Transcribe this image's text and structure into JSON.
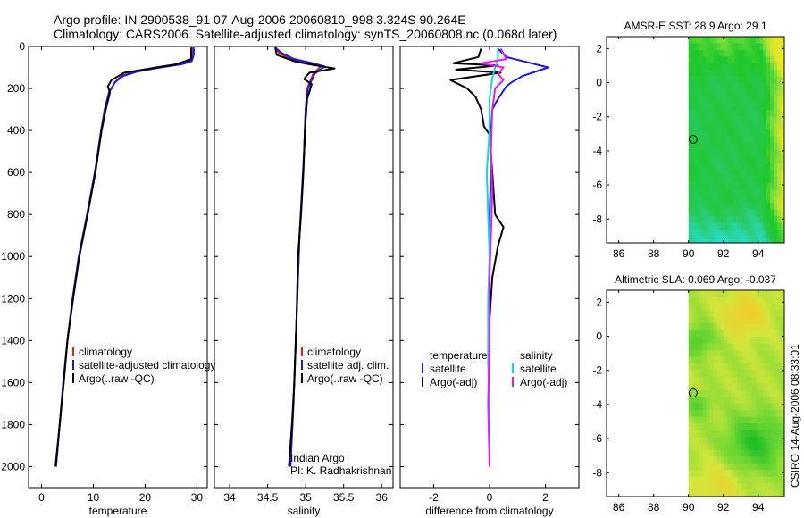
{
  "header": {
    "title_line1": "Argo profile: IN 2900538_91 07-Aug-2006 20060810_998 3.324S 90.264E",
    "title_line2": "Climatology: CARS2006. Satellite-adjusted climatology: synTS_20060808.nc (0.068d later)"
  },
  "side_stamp": "CSIRO 14-Aug-2006 08:33:01",
  "colors": {
    "climatology": "#e8191a",
    "satellite": "#1a1ae6",
    "argo": "#000000",
    "diff_temp_sat": "#1a1ae6",
    "diff_temp_argo": "#000000",
    "diff_sal_sat": "#10d6e0",
    "diff_sal_argo": "#e81ee8"
  },
  "chart_data": [
    {
      "type": "line",
      "id": "temperature",
      "xlabel": "temperature",
      "ylabel": "",
      "xlim": [
        -2.5,
        32
      ],
      "ylim": [
        2100,
        0
      ],
      "x_ticks": [
        0,
        10,
        20,
        30
      ],
      "x_tick_labels": [
        "0",
        "10",
        "20",
        "30"
      ],
      "y_ticks": [
        0,
        200,
        400,
        600,
        800,
        1000,
        1200,
        1400,
        1600,
        1800,
        2000
      ],
      "y_tick_labels": [
        "0",
        "200",
        "400",
        "600",
        "800",
        "1000",
        "1200",
        "1400",
        "1600",
        "1800",
        "2000"
      ],
      "legend": [
        "climatology",
        "satellite-adjusted climatology",
        "Argo(..raw -QC)"
      ],
      "series": [
        {
          "name": "climatology",
          "color_key": "climatology",
          "points": [
            [
              29.2,
              5
            ],
            [
              29.1,
              40
            ],
            [
              28.8,
              70
            ],
            [
              26,
              85
            ],
            [
              22,
              100
            ],
            [
              18,
              120
            ],
            [
              15.5,
              140
            ],
            [
              14.2,
              170
            ],
            [
              13,
              220
            ],
            [
              12.2,
              300
            ],
            [
              11.5,
              400
            ],
            [
              10.3,
              600
            ],
            [
              8.8,
              800
            ],
            [
              7.2,
              1000
            ],
            [
              6,
              1200
            ],
            [
              5,
              1400
            ],
            [
              4.2,
              1600
            ],
            [
              3.5,
              1800
            ],
            [
              2.8,
              2000
            ]
          ]
        },
        {
          "name": "satellite-adjusted climatology",
          "color_key": "satellite",
          "points": [
            [
              29.4,
              5
            ],
            [
              29.4,
              40
            ],
            [
              29,
              70
            ],
            [
              27,
              85
            ],
            [
              23,
              100
            ],
            [
              18.5,
              120
            ],
            [
              15.8,
              140
            ],
            [
              14.2,
              170
            ],
            [
              13,
              220
            ],
            [
              12.2,
              300
            ],
            [
              11.5,
              400
            ],
            [
              10.3,
              600
            ],
            [
              8.8,
              800
            ],
            [
              7.2,
              1000
            ],
            [
              6,
              1200
            ],
            [
              5,
              1400
            ],
            [
              4.2,
              1600
            ],
            [
              3.5,
              1800
            ],
            [
              2.8,
              2000
            ]
          ]
        },
        {
          "name": "Argo(..raw -QC)",
          "color_key": "argo",
          "points": [
            [
              28.9,
              5
            ],
            [
              28.9,
              60
            ],
            [
              26,
              85
            ],
            [
              21,
              105
            ],
            [
              16,
              125
            ],
            [
              13.5,
              160
            ],
            [
              12.8,
              190
            ],
            [
              13.2,
              220
            ],
            [
              12.4,
              300
            ],
            [
              11.6,
              400
            ],
            [
              10.4,
              600
            ],
            [
              8.9,
              800
            ],
            [
              7.3,
              1000
            ],
            [
              6.1,
              1200
            ],
            [
              5,
              1400
            ],
            [
              4.3,
              1600
            ],
            [
              3.5,
              1800
            ],
            [
              2.7,
              2000
            ]
          ]
        }
      ]
    },
    {
      "type": "line",
      "id": "salinity",
      "xlabel": "salinity",
      "xlim": [
        33.8,
        36.15
      ],
      "ylim": [
        2100,
        0
      ],
      "x_ticks": [
        34,
        34.5,
        35,
        35.5,
        36
      ],
      "x_tick_labels": [
        "34",
        "34.5",
        "35",
        "35.5",
        "36"
      ],
      "legend": [
        "climatology",
        "satellite adj. clim.",
        "Argo(..raw -QC)"
      ],
      "annotation": [
        "Indian Argo",
        "PI: K. Radhakrishnan"
      ],
      "series": [
        {
          "name": "climatology",
          "color_key": "climatology",
          "points": [
            [
              34.6,
              5
            ],
            [
              34.65,
              30
            ],
            [
              34.8,
              60
            ],
            [
              35.05,
              80
            ],
            [
              35.2,
              95
            ],
            [
              35.1,
              130
            ],
            [
              35.02,
              200
            ],
            [
              35.0,
              300
            ],
            [
              34.98,
              500
            ],
            [
              34.95,
              700
            ],
            [
              34.92,
              900
            ],
            [
              34.9,
              1100
            ],
            [
              34.87,
              1400
            ],
            [
              34.84,
              1700
            ],
            [
              34.8,
              2000
            ]
          ]
        },
        {
          "name": "satellite adj. clim.",
          "color_key": "satellite",
          "points": [
            [
              34.6,
              5
            ],
            [
              34.68,
              30
            ],
            [
              34.85,
              60
            ],
            [
              35.1,
              80
            ],
            [
              35.25,
              95
            ],
            [
              35.12,
              130
            ],
            [
              35.03,
              200
            ],
            [
              35.0,
              300
            ],
            [
              34.98,
              500
            ],
            [
              34.95,
              700
            ],
            [
              34.92,
              900
            ],
            [
              34.9,
              1100
            ],
            [
              34.87,
              1400
            ],
            [
              34.84,
              1700
            ],
            [
              34.8,
              2000
            ]
          ]
        },
        {
          "name": "Argo(..raw -QC)",
          "color_key": "argo",
          "points": [
            [
              34.6,
              5
            ],
            [
              34.62,
              40
            ],
            [
              34.85,
              70
            ],
            [
              35.05,
              85
            ],
            [
              35.38,
              105
            ],
            [
              35.05,
              125
            ],
            [
              34.98,
              155
            ],
            [
              35.08,
              180
            ],
            [
              35.02,
              250
            ],
            [
              34.99,
              400
            ],
            [
              34.97,
              600
            ],
            [
              34.94,
              800
            ],
            [
              34.9,
              1000
            ],
            [
              34.88,
              1300
            ],
            [
              34.85,
              1600
            ],
            [
              34.82,
              1800
            ],
            [
              34.78,
              2000
            ]
          ]
        }
      ]
    },
    {
      "type": "line",
      "id": "difference",
      "xlabel": "difference from climatology",
      "xlim": [
        -3.2,
        3.2
      ],
      "ylim": [
        2100,
        0
      ],
      "x_ticks": [
        -2,
        0,
        2
      ],
      "x_tick_labels": [
        "-2",
        "0",
        "2"
      ],
      "legend_temperature": {
        "title": "temperature",
        "items": [
          "satellite",
          "Argo(-adj)"
        ]
      },
      "legend_salinity": {
        "title": "salinity",
        "items": [
          "satellite",
          "Argo(-adj)"
        ]
      },
      "series": [
        {
          "name": "temperature satellite",
          "color_key": "diff_temp_sat",
          "points": [
            [
              0.3,
              10
            ],
            [
              0.6,
              50
            ],
            [
              2.1,
              100
            ],
            [
              1.2,
              140
            ],
            [
              0.8,
              170
            ],
            [
              0.6,
              190
            ],
            [
              0.3,
              250
            ],
            [
              0.1,
              300
            ],
            [
              0.05,
              400
            ],
            [
              0.05,
              600
            ],
            [
              0,
              800
            ],
            [
              0,
              1000
            ],
            [
              0,
              1300
            ],
            [
              0,
              1600
            ],
            [
              0,
              2000
            ]
          ]
        },
        {
          "name": "temperature Argo(-adj)",
          "color_key": "diff_temp_argo",
          "points": [
            [
              -0.3,
              10
            ],
            [
              -0.4,
              50
            ],
            [
              -1.3,
              80
            ],
            [
              0.3,
              90
            ],
            [
              -1.2,
              110
            ],
            [
              0.4,
              125
            ],
            [
              -1.4,
              160
            ],
            [
              -0.8,
              200
            ],
            [
              -0.5,
              240
            ],
            [
              -0.3,
              300
            ],
            [
              -0.2,
              380
            ],
            [
              0,
              420
            ],
            [
              0.1,
              600
            ],
            [
              0.2,
              800
            ],
            [
              0.5,
              860
            ],
            [
              0.3,
              950
            ],
            [
              0.1,
              1100
            ],
            [
              0,
              1300
            ],
            [
              0,
              1600
            ],
            [
              0,
              2000
            ]
          ]
        },
        {
          "name": "salinity satellite",
          "color_key": "diff_sal_sat",
          "points": [
            [
              0.3,
              10
            ],
            [
              0.3,
              60
            ],
            [
              0.2,
              100
            ],
            [
              0.1,
              150
            ],
            [
              0,
              250
            ],
            [
              0,
              400
            ],
            [
              -0.1,
              600
            ],
            [
              -0.05,
              800
            ],
            [
              0,
              1000
            ],
            [
              -0.05,
              1200
            ],
            [
              -0.05,
              1500
            ],
            [
              0,
              1800
            ],
            [
              0,
              2000
            ]
          ]
        },
        {
          "name": "salinity Argo(-adj)",
          "color_key": "diff_sal_argo",
          "points": [
            [
              0.4,
              10
            ],
            [
              0.6,
              60
            ],
            [
              -0.3,
              80
            ],
            [
              0.5,
              100
            ],
            [
              0.3,
              130
            ],
            [
              0.5,
              160
            ],
            [
              0.2,
              200
            ],
            [
              0.1,
              300
            ],
            [
              0.05,
              500
            ],
            [
              0.1,
              700
            ],
            [
              0.05,
              900
            ],
            [
              0,
              1100
            ],
            [
              0,
              1400
            ],
            [
              -0.05,
              1700
            ],
            [
              0,
              2000
            ]
          ]
        }
      ]
    },
    {
      "type": "heatmap",
      "id": "sst_map",
      "title": "AMSR-E SST: 28.9 Argo: 29.1",
      "xlim": [
        85.3,
        95.5
      ],
      "ylim": [
        -9.4,
        2.7
      ],
      "x_ticks": [
        86,
        88,
        90,
        92,
        94
      ],
      "x_tick_labels": [
        "86",
        "88",
        "90",
        "92",
        "94"
      ],
      "y_ticks": [
        2,
        0,
        -2,
        -4,
        -6,
        -8
      ],
      "y_tick_labels": [
        "2",
        "0",
        "-2",
        "-4",
        "-6",
        "-8"
      ],
      "data_lon_start": 90.0,
      "marker": {
        "lon": 90.264,
        "lat": -3.324
      }
    },
    {
      "type": "heatmap",
      "id": "sla_map",
      "title": "Altimetric SLA: 0.069 Argo: -0.037",
      "xlim": [
        85.3,
        95.5
      ],
      "ylim": [
        -9.4,
        2.7
      ],
      "x_ticks": [
        86,
        88,
        90,
        92,
        94
      ],
      "x_tick_labels": [
        "86",
        "88",
        "90",
        "92",
        "94"
      ],
      "y_ticks": [
        2,
        0,
        -2,
        -4,
        -6,
        -8
      ],
      "y_tick_labels": [
        "2",
        "0",
        "-2",
        "-4",
        "-6",
        "-8"
      ],
      "data_lon_start": 90.0,
      "marker": {
        "lon": 90.264,
        "lat": -3.324
      }
    }
  ]
}
